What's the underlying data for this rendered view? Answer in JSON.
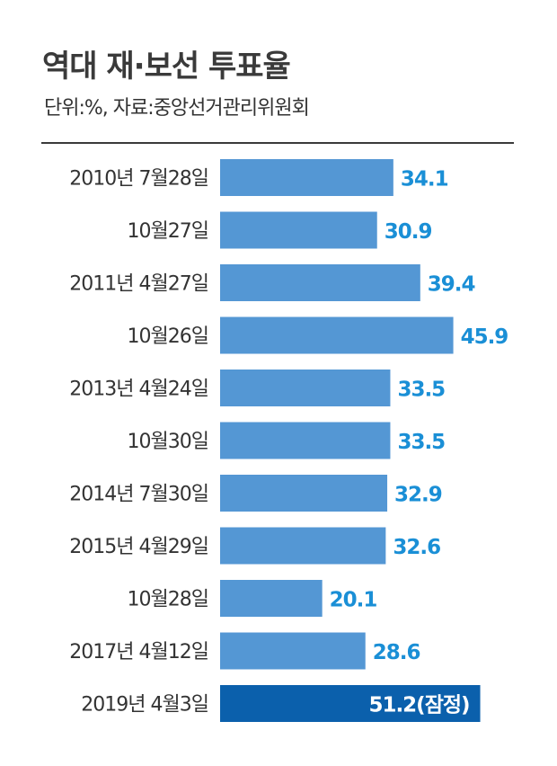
{
  "header": {
    "title": "역대 재·보선 투표율",
    "subtitle": "단위:%, 자료:중앙선거관리위원회"
  },
  "colors": {
    "bar": "#5497d4",
    "bar_highlight": "#0b60ac",
    "value_text": "#1a8fd6",
    "value_text_highlight": "#ffffff"
  },
  "chart_data": {
    "type": "bar",
    "orientation": "horizontal",
    "categories": [
      "2010년 7월28일",
      "10월27일",
      "2011년 4월27일",
      "10월26일",
      "2013년 4월24일",
      "10월30일",
      "2014년 7월30일",
      "2015년 4월29일",
      "10월28일",
      "2017년 4월12일",
      "2019년 4월3일"
    ],
    "values": [
      34.1,
      30.9,
      39.4,
      45.9,
      33.5,
      33.5,
      32.9,
      32.6,
      20.1,
      28.6,
      51.2
    ],
    "value_labels": [
      "34.1",
      "30.9",
      "39.4",
      "45.9",
      "33.5",
      "33.5",
      "32.9",
      "32.6",
      "20.1",
      "28.6",
      "51.2(잠정)"
    ],
    "highlight_index": 10,
    "title": "역대 재·보선 투표율",
    "xlabel": "",
    "ylabel": "",
    "xlim": [
      0,
      51.2
    ],
    "grid": false,
    "legend": "none"
  }
}
